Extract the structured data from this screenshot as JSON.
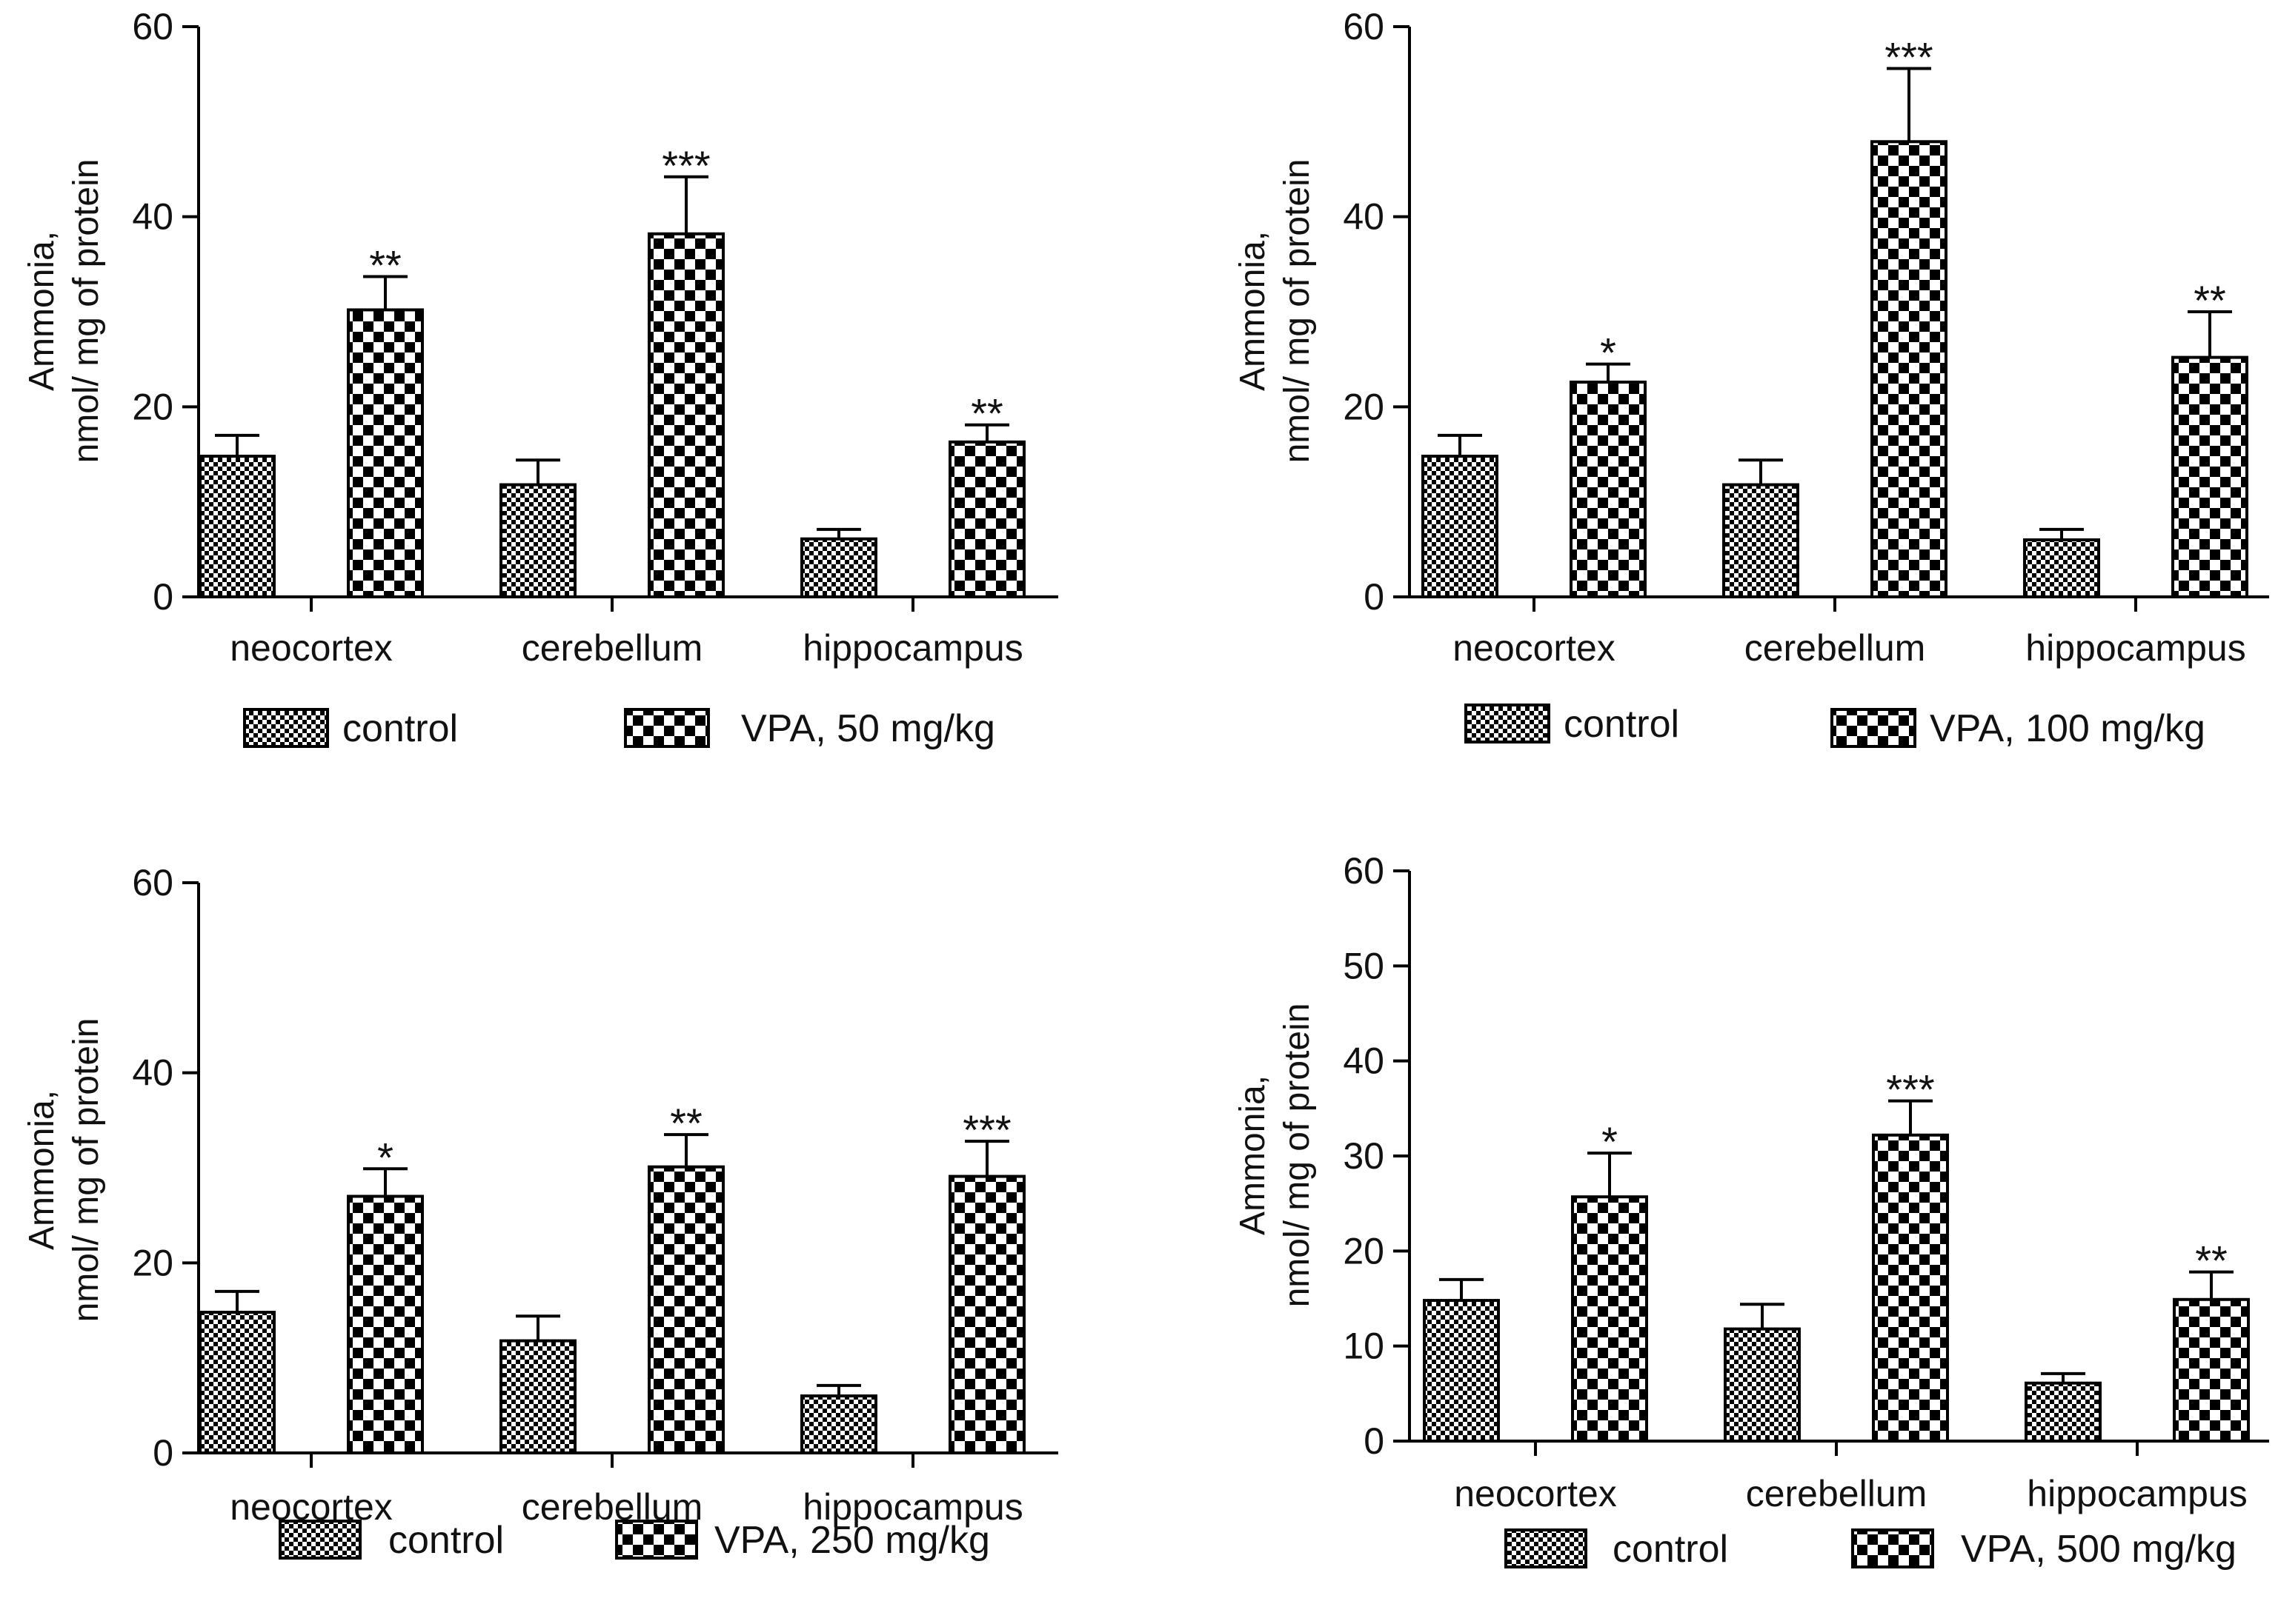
{
  "chart_data": [
    {
      "type": "bar",
      "categories": [
        "neocortex",
        "cerebellum",
        "hippocampus"
      ],
      "ylabel": [
        "Ammonia,",
        "nmol/ mg of protein"
      ],
      "ylim": [
        0,
        60
      ],
      "yticks": [
        "0",
        "20",
        "40",
        "60"
      ],
      "series": [
        {
          "name": "control",
          "values": [
            14.8,
            11.8,
            6.1
          ],
          "errors": [
            2.2,
            2.6,
            1.0
          ]
        },
        {
          "name": "VPA, 50 mg/kg",
          "values": [
            30.2,
            38.2,
            16.3
          ],
          "errors": [
            3.5,
            6.0,
            1.8
          ]
        }
      ],
      "significance": [
        "**",
        "***",
        "**"
      ]
    },
    {
      "type": "bar",
      "categories": [
        "neocortex",
        "cerebellum",
        "hippocampus"
      ],
      "ylabel": [
        "Ammonia,",
        "nmol/ mg of protein"
      ],
      "ylim": [
        0,
        60
      ],
      "yticks": [
        "0",
        "20",
        "40",
        "60"
      ],
      "series": [
        {
          "name": "control",
          "values": [
            14.8,
            11.8,
            6.0
          ],
          "errors": [
            2.2,
            2.6,
            1.1
          ]
        },
        {
          "name": "VPA, 100 mg/kg",
          "values": [
            22.6,
            47.9,
            25.2
          ],
          "errors": [
            1.9,
            7.7,
            4.8
          ]
        }
      ],
      "significance": [
        "*",
        "***",
        "**"
      ]
    },
    {
      "type": "bar",
      "categories": [
        "neocortex",
        "cerebellum",
        "hippocampus"
      ],
      "ylabel": [
        "Ammonia,",
        "nmol/ mg of protein"
      ],
      "ylim": [
        0,
        60
      ],
      "yticks": [
        "0",
        "20",
        "40",
        "60"
      ],
      "series": [
        {
          "name": "control",
          "values": [
            14.8,
            11.8,
            6.0
          ],
          "errors": [
            2.2,
            2.6,
            1.1
          ]
        },
        {
          "name": "VPA, 250 mg/kg",
          "values": [
            27.0,
            30.1,
            29.1
          ],
          "errors": [
            2.9,
            3.4,
            3.7
          ]
        }
      ],
      "significance": [
        "*",
        "**",
        "***"
      ]
    },
    {
      "type": "bar",
      "categories": [
        "neocortex",
        "cerebellum",
        "hippocampus"
      ],
      "ylabel": [
        "Ammonia,",
        "nmol/ mg of protein"
      ],
      "ylim": [
        0,
        60
      ],
      "yticks": [
        "0",
        "10",
        "20",
        "30",
        "40",
        "50",
        "60"
      ],
      "series": [
        {
          "name": "control",
          "values": [
            14.8,
            11.8,
            6.1
          ],
          "errors": [
            2.2,
            2.6,
            1.0
          ]
        },
        {
          "name": "VPA, 500 mg/kg",
          "values": [
            25.7,
            32.2,
            14.9
          ],
          "errors": [
            4.6,
            3.6,
            2.9
          ]
        }
      ],
      "significance": [
        "*",
        "***",
        "**"
      ]
    }
  ],
  "colors": {
    "axis": "#000000",
    "text": "#111111",
    "bar_fill_light": "#ffffff",
    "bar_fill_dark": "#000000"
  }
}
